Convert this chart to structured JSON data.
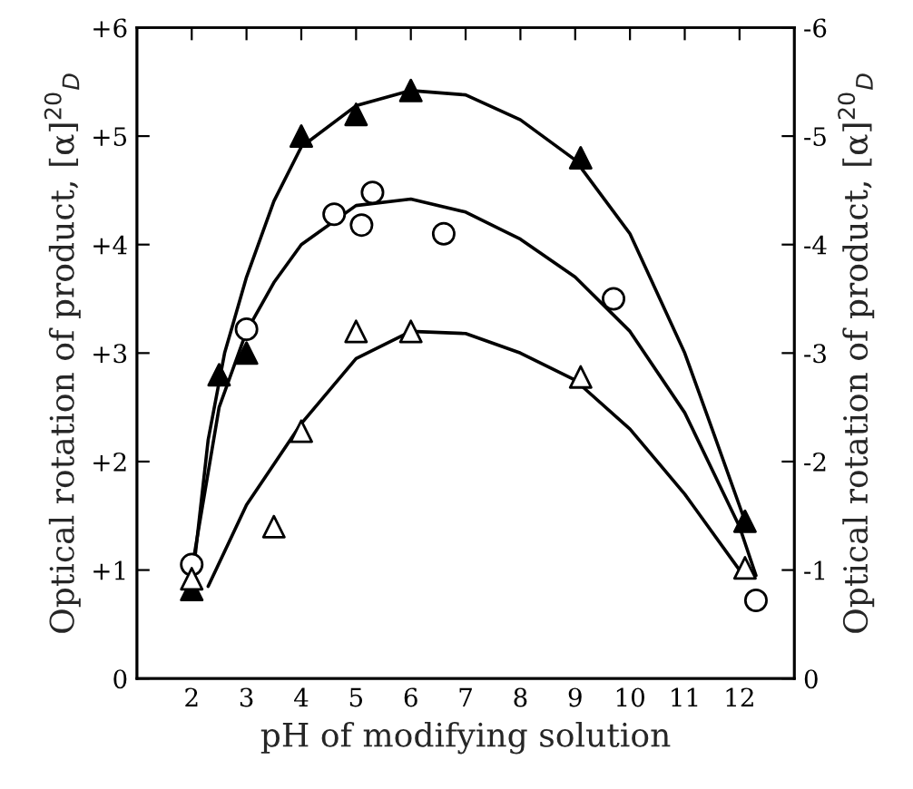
{
  "chart_data": {
    "type": "scatter",
    "xlabel": "pH of modifying solution",
    "ylabel": "Optical rotation of product, [α]$^{20}$$_{D}$",
    "y2label": "Optical rotation of product, [α]$^{20}$$_{D}$",
    "xlim": [
      1,
      13
    ],
    "xticks": [
      2,
      3,
      4,
      5,
      6,
      7,
      8,
      9,
      10,
      11,
      12
    ],
    "ylim": [
      0,
      6
    ],
    "yticks": [
      0,
      {
        "value": 1,
        "label": "+1"
      },
      {
        "value": 2,
        "label": "+2"
      },
      {
        "value": 3,
        "label": "+3"
      },
      {
        "value": 4,
        "label": "+4"
      },
      {
        "value": 5,
        "label": "+5"
      },
      {
        "value": 6,
        "label": "+6"
      }
    ],
    "y2lim": [
      0,
      -6
    ],
    "y2ticks": [
      0,
      -1,
      -2,
      -3,
      -4,
      -5,
      -6
    ],
    "grid": false,
    "legend": false,
    "series": [
      {
        "type": "line",
        "color": "#000000",
        "marker": "none",
        "x": [
          2,
          2.3,
          2.6,
          3,
          3.5,
          4,
          5,
          6,
          7,
          8,
          9,
          10,
          11,
          11.5,
          12.1
        ],
        "values": [
          0.85,
          2.2,
          3.0,
          3.7,
          4.4,
          4.9,
          5.28,
          5.42,
          5.38,
          5.15,
          4.78,
          4.1,
          3.0,
          2.3,
          1.45
        ]
      },
      {
        "type": "line",
        "color": "#000000",
        "marker": "none",
        "x": [
          2,
          2.5,
          3,
          3.5,
          4,
          5,
          6,
          7,
          8,
          9,
          10,
          11,
          12,
          12.3
        ],
        "values": [
          1.0,
          2.5,
          3.2,
          3.65,
          4.0,
          4.36,
          4.42,
          4.3,
          4.05,
          3.7,
          3.2,
          2.45,
          1.4,
          0.95
        ]
      },
      {
        "type": "line",
        "color": "#000000",
        "marker": "none",
        "x": [
          2.3,
          3,
          4,
          5,
          6,
          7,
          8,
          9,
          10,
          11,
          12
        ],
        "values": [
          0.85,
          1.6,
          2.35,
          2.95,
          3.2,
          3.18,
          3.0,
          2.75,
          2.3,
          1.7,
          1.0
        ]
      },
      {
        "color": "#000000",
        "marker": "triangle",
        "x": [
          2,
          2.5,
          3,
          4,
          5,
          6,
          9.1,
          12.1
        ],
        "values": [
          0.82,
          2.8,
          3.0,
          5.0,
          5.2,
          5.42,
          4.8,
          1.45
        ]
      },
      {
        "color": "#ffffff",
        "marker": "circle",
        "x": [
          2,
          3,
          4.6,
          5.1,
          5.3,
          6.6,
          9.7,
          12.3
        ],
        "values": [
          1.05,
          3.22,
          4.28,
          4.18,
          4.48,
          4.1,
          3.5,
          0.72
        ]
      },
      {
        "color": "#ffffff",
        "marker": "triangle",
        "x": [
          2,
          3.5,
          4,
          5,
          6,
          9.1,
          12.1
        ],
        "values": [
          0.92,
          1.4,
          2.28,
          3.2,
          3.2,
          2.78,
          1.02
        ]
      }
    ]
  }
}
